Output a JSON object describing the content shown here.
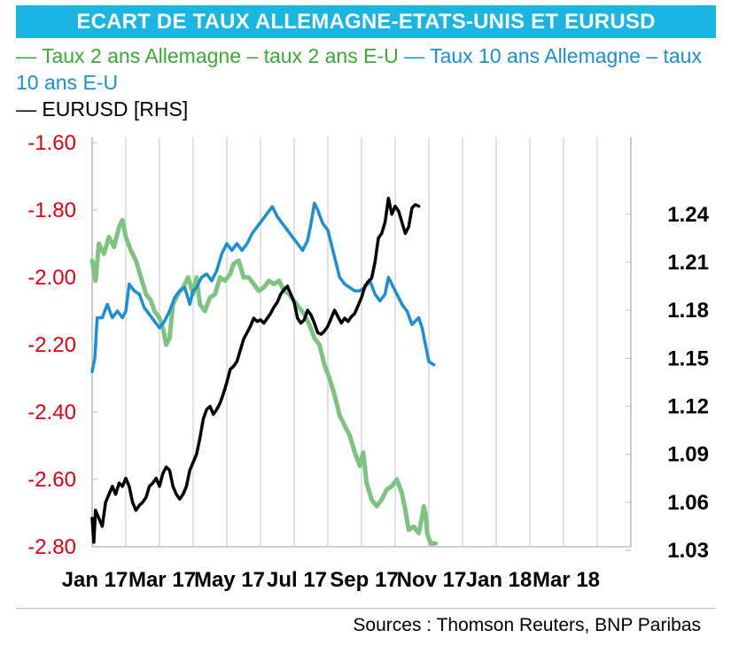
{
  "title": "ECART DE TAUX ALLEMAGNE-ETATS-UNIS ET EURUSD",
  "legend": {
    "s2y": "— Taux 2 ans Allemagne – taux 2 ans E-U",
    "s10y": "— Taux 10 ans Allemagne – taux 10 ans E-U",
    "eurusd": "— EURUSD [RHS]"
  },
  "sources": "Sources : Thomson Reuters, BNP Paribas",
  "colors": {
    "green": "#7cc47f",
    "blue": "#1b8fd6",
    "black": "#000000",
    "left_axis_text": "#e3000f",
    "title_bg": "#1ab6e2"
  },
  "chart_data": {
    "type": "line",
    "x_ticks": [
      "Jan 17",
      "Mar 17",
      "May 17",
      "Jul 17",
      "Sep 17",
      "Nov 17",
      "Jan 18",
      "Mar 18"
    ],
    "left_axis": {
      "ticks": [
        "-1.60",
        "-1.80",
        "-2.00",
        "-2.20",
        "-2.40",
        "-2.60",
        "-2.80"
      ],
      "range": [
        -2.8,
        -1.6
      ]
    },
    "right_axis": {
      "ticks": [
        "1.24",
        "1.21",
        "1.18",
        "1.15",
        "1.12",
        "1.09",
        "1.06",
        "1.03"
      ],
      "range": [
        1.03,
        1.2825
      ]
    },
    "grid": "vertical",
    "series": [
      {
        "name": "Taux 2 ans Allemagne – taux 2 ans E-U",
        "axis": "left",
        "color": "#7cc47f",
        "points": [
          [
            0,
            -1.95
          ],
          [
            0.1,
            -2.01
          ],
          [
            0.2,
            -1.9
          ],
          [
            0.35,
            -1.93
          ],
          [
            0.5,
            -1.88
          ],
          [
            0.65,
            -1.91
          ],
          [
            0.8,
            -1.85
          ],
          [
            0.9,
            -1.83
          ],
          [
            1.0,
            -1.88
          ],
          [
            1.15,
            -1.92
          ],
          [
            1.3,
            -1.95
          ],
          [
            1.45,
            -2.0
          ],
          [
            1.6,
            -2.05
          ],
          [
            1.75,
            -2.07
          ],
          [
            1.85,
            -2.1
          ],
          [
            2.0,
            -2.12
          ],
          [
            2.1,
            -2.15
          ],
          [
            2.2,
            -2.2
          ],
          [
            2.3,
            -2.18
          ],
          [
            2.4,
            -2.08
          ],
          [
            2.55,
            -2.05
          ],
          [
            2.7,
            -2.03
          ],
          [
            2.85,
            -2.0
          ],
          [
            3.0,
            -2.05
          ],
          [
            3.1,
            -2.0
          ],
          [
            3.2,
            -2.08
          ],
          [
            3.35,
            -2.1
          ],
          [
            3.5,
            -2.06
          ],
          [
            3.65,
            -2.05
          ],
          [
            3.8,
            -2.0
          ],
          [
            3.95,
            -2.01
          ],
          [
            4.1,
            -1.99
          ],
          [
            4.2,
            -1.96
          ],
          [
            4.35,
            -1.95
          ],
          [
            4.5,
            -2.0
          ],
          [
            4.65,
            -2.0
          ],
          [
            4.8,
            -2.02
          ],
          [
            4.95,
            -2.04
          ],
          [
            5.1,
            -2.03
          ],
          [
            5.25,
            -2.01
          ],
          [
            5.4,
            -2.02
          ],
          [
            5.55,
            -2.01
          ],
          [
            5.7,
            -2.04
          ],
          [
            5.85,
            -2.05
          ],
          [
            6.0,
            -2.07
          ],
          [
            6.15,
            -2.09
          ],
          [
            6.3,
            -2.11
          ],
          [
            6.45,
            -2.14
          ],
          [
            6.6,
            -2.18
          ],
          [
            6.75,
            -2.2
          ],
          [
            6.9,
            -2.26
          ],
          [
            7.05,
            -2.3
          ],
          [
            7.2,
            -2.35
          ],
          [
            7.35,
            -2.41
          ],
          [
            7.5,
            -2.44
          ],
          [
            7.65,
            -2.47
          ],
          [
            7.8,
            -2.52
          ],
          [
            7.95,
            -2.56
          ],
          [
            8.05,
            -2.52
          ],
          [
            8.15,
            -2.61
          ],
          [
            8.3,
            -2.66
          ],
          [
            8.45,
            -2.68
          ],
          [
            8.6,
            -2.66
          ],
          [
            8.75,
            -2.63
          ],
          [
            8.9,
            -2.62
          ],
          [
            9.05,
            -2.6
          ],
          [
            9.2,
            -2.64
          ],
          [
            9.3,
            -2.69
          ],
          [
            9.4,
            -2.75
          ],
          [
            9.55,
            -2.74
          ],
          [
            9.7,
            -2.76
          ],
          [
            9.8,
            -2.71
          ],
          [
            9.85,
            -2.68
          ],
          [
            9.9,
            -2.7
          ],
          [
            9.95,
            -2.76
          ],
          [
            10.05,
            -2.79
          ],
          [
            10.2,
            -2.79
          ]
        ]
      },
      {
        "name": "Taux 10 ans Allemagne – taux 10 ans E-U",
        "axis": "left",
        "color": "#1b8fd6",
        "points": [
          [
            0,
            -2.28
          ],
          [
            0.08,
            -2.24
          ],
          [
            0.15,
            -2.12
          ],
          [
            0.3,
            -2.12
          ],
          [
            0.45,
            -2.08
          ],
          [
            0.6,
            -2.12
          ],
          [
            0.75,
            -2.1
          ],
          [
            0.9,
            -2.12
          ],
          [
            1.0,
            -2.1
          ],
          [
            1.1,
            -2.02
          ],
          [
            1.25,
            -2.04
          ],
          [
            1.4,
            -2.05
          ],
          [
            1.55,
            -2.09
          ],
          [
            1.7,
            -2.11
          ],
          [
            1.85,
            -2.13
          ],
          [
            2.0,
            -2.15
          ],
          [
            2.15,
            -2.13
          ],
          [
            2.3,
            -2.1
          ],
          [
            2.45,
            -2.06
          ],
          [
            2.6,
            -2.04
          ],
          [
            2.75,
            -2.03
          ],
          [
            2.9,
            -2.08
          ],
          [
            3.0,
            -2.04
          ],
          [
            3.1,
            -2.03
          ],
          [
            3.25,
            -2.0
          ],
          [
            3.4,
            -1.99
          ],
          [
            3.55,
            -2.01
          ],
          [
            3.7,
            -1.98
          ],
          [
            3.85,
            -1.93
          ],
          [
            4.0,
            -1.9
          ],
          [
            4.15,
            -1.92
          ],
          [
            4.3,
            -1.9
          ],
          [
            4.45,
            -1.92
          ],
          [
            4.6,
            -1.9
          ],
          [
            4.75,
            -1.87
          ],
          [
            4.9,
            -1.85
          ],
          [
            5.05,
            -1.83
          ],
          [
            5.2,
            -1.81
          ],
          [
            5.35,
            -1.79
          ],
          [
            5.5,
            -1.82
          ],
          [
            5.65,
            -1.84
          ],
          [
            5.8,
            -1.86
          ],
          [
            5.95,
            -1.88
          ],
          [
            6.1,
            -1.9
          ],
          [
            6.25,
            -1.92
          ],
          [
            6.4,
            -1.89
          ],
          [
            6.5,
            -1.84
          ],
          [
            6.6,
            -1.78
          ],
          [
            6.7,
            -1.8
          ],
          [
            6.85,
            -1.84
          ],
          [
            7.0,
            -1.86
          ],
          [
            7.1,
            -1.9
          ],
          [
            7.2,
            -1.94
          ],
          [
            7.35,
            -2.0
          ],
          [
            7.5,
            -2.02
          ],
          [
            7.65,
            -2.03
          ],
          [
            7.8,
            -2.04
          ],
          [
            7.95,
            -2.04
          ],
          [
            8.1,
            -2.03
          ],
          [
            8.25,
            -2.01
          ],
          [
            8.4,
            -2.05
          ],
          [
            8.55,
            -2.07
          ],
          [
            8.7,
            -2.05
          ],
          [
            8.8,
            -2.0
          ],
          [
            8.9,
            -2.02
          ],
          [
            9.05,
            -2.05
          ],
          [
            9.2,
            -2.08
          ],
          [
            9.35,
            -2.1
          ],
          [
            9.5,
            -2.14
          ],
          [
            9.6,
            -2.13
          ],
          [
            9.7,
            -2.12
          ],
          [
            9.8,
            -2.15
          ],
          [
            9.9,
            -2.2
          ],
          [
            10.0,
            -2.25
          ],
          [
            10.15,
            -2.26
          ]
        ]
      },
      {
        "name": "EURUSD [RHS]",
        "axis": "right",
        "color": "#000000",
        "points": [
          [
            0,
            1.05
          ],
          [
            0.05,
            1.035
          ],
          [
            0.1,
            1.055
          ],
          [
            0.2,
            1.05
          ],
          [
            0.3,
            1.045
          ],
          [
            0.4,
            1.06
          ],
          [
            0.5,
            1.065
          ],
          [
            0.6,
            1.07
          ],
          [
            0.7,
            1.065
          ],
          [
            0.8,
            1.072
          ],
          [
            0.9,
            1.07
          ],
          [
            1.0,
            1.075
          ],
          [
            1.1,
            1.07
          ],
          [
            1.2,
            1.06
          ],
          [
            1.3,
            1.055
          ],
          [
            1.4,
            1.058
          ],
          [
            1.5,
            1.06
          ],
          [
            1.6,
            1.063
          ],
          [
            1.7,
            1.07
          ],
          [
            1.8,
            1.072
          ],
          [
            1.9,
            1.075
          ],
          [
            2.0,
            1.07
          ],
          [
            2.1,
            1.078
          ],
          [
            2.2,
            1.082
          ],
          [
            2.3,
            1.08
          ],
          [
            2.4,
            1.07
          ],
          [
            2.5,
            1.065
          ],
          [
            2.6,
            1.062
          ],
          [
            2.7,
            1.065
          ],
          [
            2.8,
            1.07
          ],
          [
            2.9,
            1.08
          ],
          [
            3.0,
            1.085
          ],
          [
            3.1,
            1.09
          ],
          [
            3.2,
            1.1
          ],
          [
            3.3,
            1.112
          ],
          [
            3.4,
            1.118
          ],
          [
            3.5,
            1.12
          ],
          [
            3.6,
            1.115
          ],
          [
            3.7,
            1.118
          ],
          [
            3.8,
            1.122
          ],
          [
            3.9,
            1.128
          ],
          [
            4.0,
            1.135
          ],
          [
            4.1,
            1.143
          ],
          [
            4.2,
            1.145
          ],
          [
            4.3,
            1.148
          ],
          [
            4.4,
            1.155
          ],
          [
            4.5,
            1.162
          ],
          [
            4.6,
            1.166
          ],
          [
            4.7,
            1.17
          ],
          [
            4.8,
            1.175
          ],
          [
            4.9,
            1.173
          ],
          [
            5.0,
            1.174
          ],
          [
            5.1,
            1.172
          ],
          [
            5.2,
            1.175
          ],
          [
            5.3,
            1.178
          ],
          [
            5.4,
            1.182
          ],
          [
            5.5,
            1.185
          ],
          [
            5.6,
            1.19
          ],
          [
            5.7,
            1.193
          ],
          [
            5.8,
            1.195
          ],
          [
            5.9,
            1.19
          ],
          [
            6.0,
            1.185
          ],
          [
            6.1,
            1.175
          ],
          [
            6.2,
            1.172
          ],
          [
            6.3,
            1.174
          ],
          [
            6.4,
            1.18
          ],
          [
            6.5,
            1.177
          ],
          [
            6.6,
            1.172
          ],
          [
            6.7,
            1.166
          ],
          [
            6.8,
            1.165
          ],
          [
            6.9,
            1.167
          ],
          [
            7.0,
            1.17
          ],
          [
            7.1,
            1.175
          ],
          [
            7.2,
            1.18
          ],
          [
            7.3,
            1.176
          ],
          [
            7.4,
            1.172
          ],
          [
            7.5,
            1.175
          ],
          [
            7.6,
            1.173
          ],
          [
            7.7,
            1.176
          ],
          [
            7.8,
            1.178
          ],
          [
            7.9,
            1.183
          ],
          [
            8.0,
            1.188
          ],
          [
            8.1,
            1.195
          ],
          [
            8.2,
            1.198
          ],
          [
            8.3,
            1.2
          ],
          [
            8.4,
            1.21
          ],
          [
            8.5,
            1.225
          ],
          [
            8.6,
            1.228
          ],
          [
            8.7,
            1.235
          ],
          [
            8.8,
            1.25
          ],
          [
            8.9,
            1.24
          ],
          [
            9.0,
            1.245
          ],
          [
            9.1,
            1.242
          ],
          [
            9.2,
            1.235
          ],
          [
            9.3,
            1.228
          ],
          [
            9.4,
            1.232
          ],
          [
            9.5,
            1.244
          ],
          [
            9.6,
            1.246
          ],
          [
            9.7,
            1.245
          ]
        ]
      }
    ]
  }
}
